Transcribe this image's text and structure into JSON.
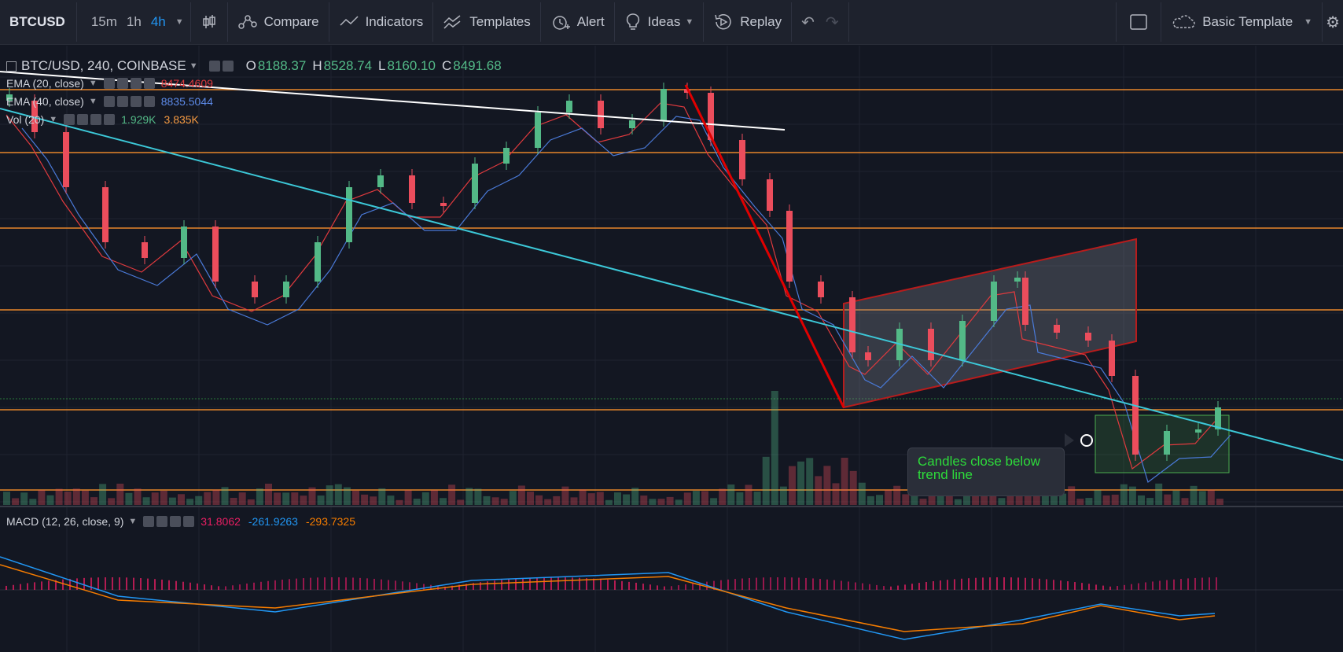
{
  "toolbar": {
    "symbol": "BTCUSD",
    "intervals": [
      "15m",
      "1h",
      "4h"
    ],
    "active_interval": "4h",
    "compare": "Compare",
    "indicators": "Indicators",
    "templates": "Templates",
    "alert": "Alert",
    "ideas": "Ideas",
    "replay": "Replay",
    "basic_template": "Basic Template"
  },
  "legend": {
    "main": "BTC/USD, 240, COINBASE",
    "o_label": "O",
    "o": "8188.37",
    "h_label": "H",
    "h": "8528.74",
    "l_label": "L",
    "l": "8160.10",
    "c_label": "C",
    "c": "8491.68",
    "ema20": "EMA (20, close)",
    "ema20_val": "8474.4609",
    "ema40": "EMA (40, close)",
    "ema40_val": "8835.5044",
    "vol": "Vol (20)",
    "vol_val1": "1.929K",
    "vol_val2": "3.835K",
    "macd": "MACD (12, 26, close, 9)",
    "macd_val1": "31.8062",
    "macd_val2": "-261.9263",
    "macd_val3": "-293.7325"
  },
  "annotation": {
    "callout_line1": "Candles close below",
    "callout_line2": "trend line"
  },
  "colors": {
    "background": "#131722",
    "up": "#53b987",
    "down": "#eb4d5c",
    "ema20": "#e03a3e",
    "ema40": "#4a7ad8",
    "trendline": "#3cc8d8",
    "level": "#e8862a",
    "callout_text": "#2ddb3a"
  }
}
